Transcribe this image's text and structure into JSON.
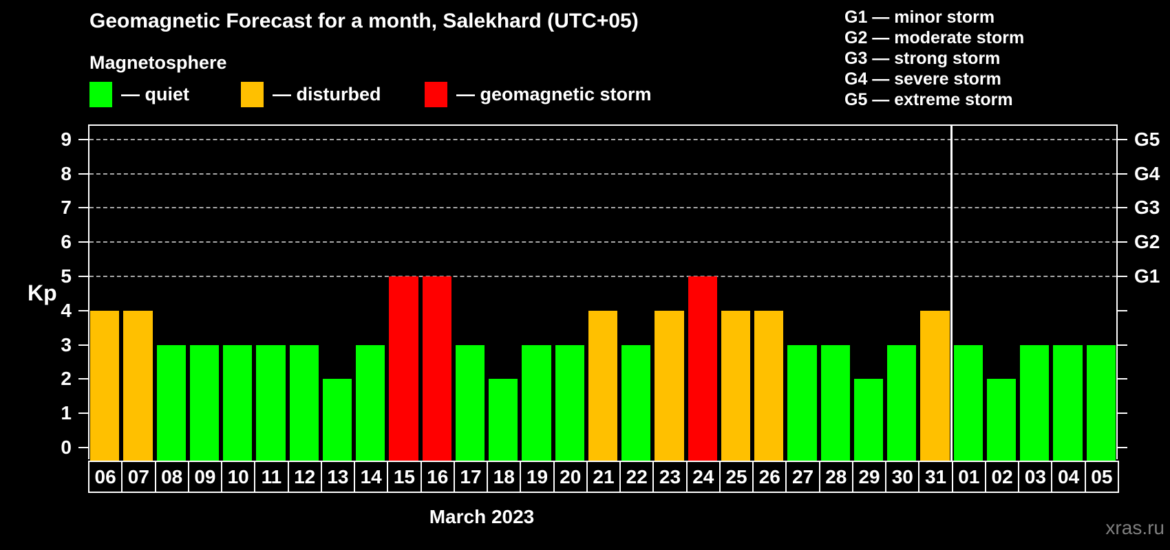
{
  "title": "Geomagnetic Forecast for a month, Salekhard (UTC+05)",
  "subtitle": "Magnetosphere",
  "legend": {
    "items": [
      {
        "key": "quiet",
        "label": "— quiet",
        "color": "#00FF00"
      },
      {
        "key": "disturbed",
        "label": "— disturbed",
        "color": "#FFC000"
      },
      {
        "key": "storm",
        "label": "— geomagnetic storm",
        "color": "#FF0000"
      }
    ]
  },
  "storm_legend": {
    "lines": [
      "G1 — minor storm",
      "G2 — moderate storm",
      "G3 — strong storm",
      "G4 — severe storm",
      "G5 — extreme storm"
    ]
  },
  "watermark": "xras.ru",
  "chart_data": {
    "type": "bar",
    "title": "Geomagnetic Forecast for a month, Salekhard (UTC+05)",
    "xlabel": "March 2023",
    "ylabel": "Kp",
    "ylim": [
      -0.35,
      9.4
    ],
    "yticks": [
      0,
      1,
      2,
      3,
      4,
      5,
      6,
      7,
      8,
      9
    ],
    "gridlines_at": [
      5,
      6,
      7,
      8,
      9
    ],
    "grid": "dashed horizontal at storm levels only",
    "right_axis_labels": [
      {
        "kp": 5,
        "label": "G1"
      },
      {
        "kp": 6,
        "label": "G2"
      },
      {
        "kp": 7,
        "label": "G3"
      },
      {
        "kp": 8,
        "label": "G4"
      },
      {
        "kp": 9,
        "label": "G5"
      }
    ],
    "categories": [
      "06",
      "07",
      "08",
      "09",
      "10",
      "11",
      "12",
      "13",
      "14",
      "15",
      "16",
      "17",
      "18",
      "19",
      "20",
      "21",
      "22",
      "23",
      "24",
      "25",
      "26",
      "27",
      "28",
      "29",
      "30",
      "31",
      "01",
      "02",
      "03",
      "04",
      "05"
    ],
    "values": [
      4,
      4,
      3,
      3,
      3,
      3,
      3,
      2,
      3,
      5,
      5,
      3,
      2,
      3,
      3,
      4,
      3,
      4,
      5,
      4,
      4,
      3,
      3,
      2,
      3,
      4,
      3,
      2,
      3,
      3,
      3
    ],
    "statuses": [
      "disturbed",
      "disturbed",
      "quiet",
      "quiet",
      "quiet",
      "quiet",
      "quiet",
      "quiet",
      "quiet",
      "storm",
      "storm",
      "quiet",
      "quiet",
      "quiet",
      "quiet",
      "disturbed",
      "quiet",
      "disturbed",
      "storm",
      "disturbed",
      "disturbed",
      "quiet",
      "quiet",
      "quiet",
      "quiet",
      "disturbed",
      "quiet",
      "quiet",
      "quiet",
      "quiet",
      "quiet"
    ],
    "status_colors": {
      "quiet": "#00FF00",
      "disturbed": "#FFC000",
      "storm": "#FF0000"
    },
    "month_separator_after_index": 25,
    "legend_position": "top",
    "colors": {
      "axis": "#FFFFFF",
      "gridline": "#AAAAAA",
      "background": "#000000",
      "watermark": "#7F7F7F"
    }
  }
}
